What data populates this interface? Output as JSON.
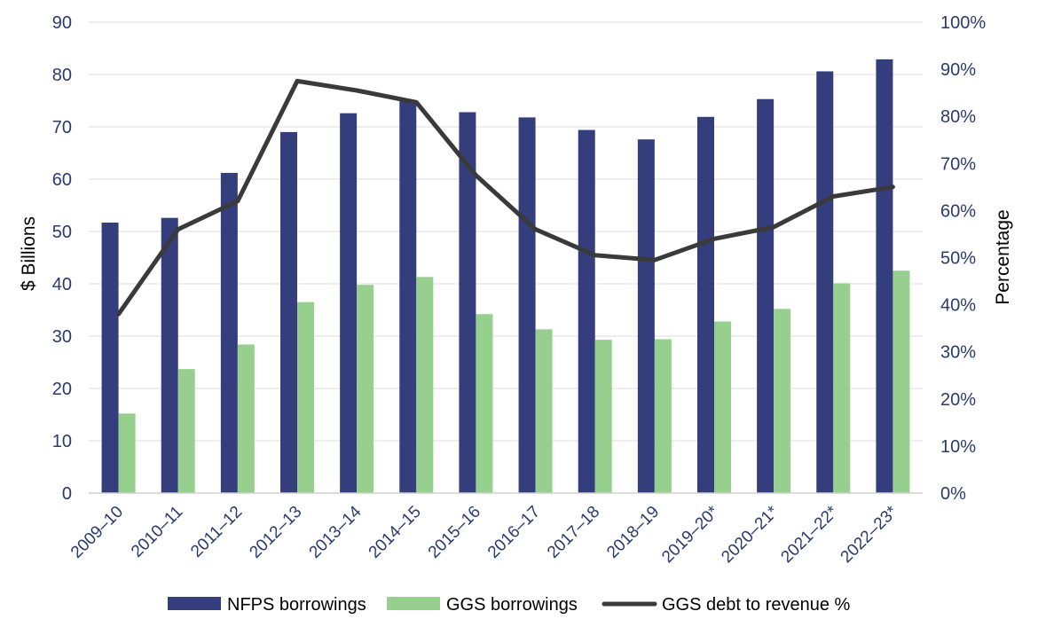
{
  "chart_data": {
    "type": "bar",
    "categories": [
      "2009–10",
      "2010–11",
      "2011–12",
      "2012–13",
      "2013–14",
      "2014–15",
      "2015–16",
      "2016–17",
      "2017–18",
      "2018–19",
      "2019–20*",
      "2020–21*",
      "2021–22*",
      "2022–23*"
    ],
    "series": [
      {
        "name": "NFPS borrowings",
        "type": "bar",
        "axis": "left",
        "color": "#353e7c",
        "values": [
          51.7,
          52.6,
          61.2,
          69.0,
          72.6,
          75.0,
          72.8,
          71.8,
          69.4,
          67.6,
          71.9,
          75.3,
          80.6,
          82.9
        ]
      },
      {
        "name": "GGS borrowings",
        "type": "bar",
        "axis": "left",
        "color": "#97cf8f",
        "values": [
          15.2,
          23.7,
          28.4,
          36.5,
          39.8,
          41.3,
          34.2,
          31.3,
          29.3,
          29.4,
          32.8,
          35.2,
          40.1,
          42.5
        ]
      },
      {
        "name": "GGS debt to revenue %",
        "type": "line",
        "axis": "right",
        "color": "#3a3a3a",
        "values": [
          38,
          56,
          62,
          87.5,
          85.5,
          83,
          67.5,
          56,
          50.5,
          49.5,
          54,
          56.5,
          63,
          65
        ]
      }
    ],
    "ylabel": "$ Billions",
    "y2label": "Percentage",
    "ylim": [
      0,
      90
    ],
    "y2lim": [
      0,
      100
    ],
    "yticks": [
      "0",
      "10",
      "20",
      "30",
      "40",
      "50",
      "60",
      "70",
      "80",
      "90"
    ],
    "y2ticks": [
      "0%",
      "10%",
      "20%",
      "30%",
      "40%",
      "50%",
      "60%",
      "70%",
      "80%",
      "90%",
      "100%"
    ],
    "grid": true,
    "legend_position": "bottom"
  }
}
